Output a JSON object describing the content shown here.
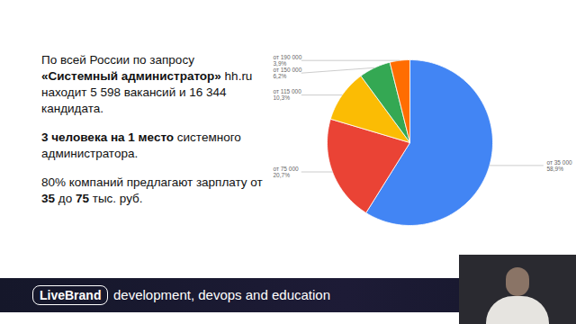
{
  "slide": {
    "paragraphs": [
      [
        {
          "text": "По всей России по запросу ",
          "bold": false
        },
        {
          "text": "«Системный администратор»",
          "bold": true
        },
        {
          "text": " hh.ru находит 5 598 вакансий и 16 344 кандидата.",
          "bold": false
        }
      ],
      [
        {
          "text": "3 человека на 1 место",
          "bold": true
        },
        {
          "text": " системного администратора.",
          "bold": false
        }
      ],
      [
        {
          "text": "80% компаний предлагают зарплату от ",
          "bold": false
        },
        {
          "text": "35",
          "bold": true
        },
        {
          "text": " до ",
          "bold": false
        },
        {
          "text": "75",
          "bold": true
        },
        {
          "text": " тыс. руб.",
          "bold": false
        }
      ]
    ]
  },
  "chart_data": {
    "type": "pie",
    "categories": [
      "от 35 000",
      "от 75 000",
      "от 115 000",
      "от 150 000",
      "от 190 000"
    ],
    "values": [
      58.9,
      20.7,
      10.3,
      6.2,
      3.9
    ],
    "value_labels": [
      "58,9%",
      "20,7%",
      "10,3%",
      "6,2%",
      "3,9%"
    ],
    "colors": [
      "#4285f4",
      "#ea4335",
      "#fbbc04",
      "#34a853",
      "#ff6d01"
    ],
    "data_labels": true
  },
  "banner": {
    "brand": "LiveBrand",
    "tagline": "development, devops and education"
  }
}
